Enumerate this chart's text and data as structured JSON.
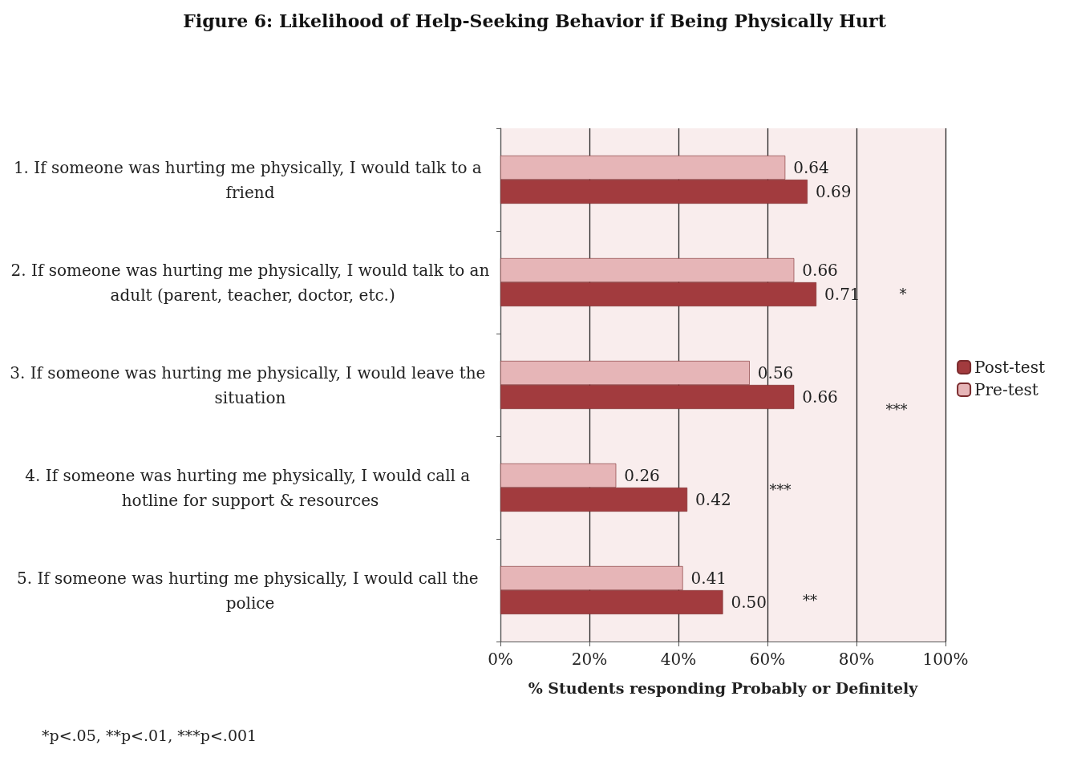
{
  "chart_data": {
    "type": "bar",
    "orientation": "horizontal",
    "title": "Figure 6: Likelihood of Help-Seeking Behavior if Being Physically Hurt",
    "xlabel": "% Students responding Probably or Definitely",
    "categories": [
      "1. If someone was hurting me physically, I would talk to a friend",
      "2. If someone was hurting me physically, I would talk to an adult (parent, teacher, doctor, etc.)",
      "3. If someone was hurting me physically, I would leave the situation",
      "4. If someone was hurting me physically, I would call a hotline for support & resources",
      "5. If someone was hurting me physically, I would call the police"
    ],
    "series": [
      {
        "name": "Pre-test",
        "color": "#e6b5b7",
        "values": [
          0.64,
          0.66,
          0.56,
          0.26,
          0.41
        ],
        "value_labels": [
          "0.64",
          "0.66",
          "0.56",
          "0.26",
          "0.41"
        ]
      },
      {
        "name": "Post-test",
        "color": "#a23b3e",
        "values": [
          0.69,
          0.71,
          0.66,
          0.42,
          0.5
        ],
        "value_labels": [
          "0.69",
          "0.71",
          "0.66",
          "0.42",
          "0.50"
        ]
      }
    ],
    "xlim": [
      0,
      1
    ],
    "xticks": [
      {
        "value": 0,
        "label": "0%"
      },
      {
        "value": 0.2,
        "label": "20%"
      },
      {
        "value": 0.4,
        "label": "40%"
      },
      {
        "value": 0.6,
        "label": "60%"
      },
      {
        "value": 0.8,
        "label": "80%"
      },
      {
        "value": 1,
        "label": "100%"
      }
    ],
    "grid": "x",
    "legend": "right",
    "annotations": [
      "*",
      "***",
      "***",
      "**",
      "*p<.05, **p<.01, ***p<.001"
    ]
  }
}
